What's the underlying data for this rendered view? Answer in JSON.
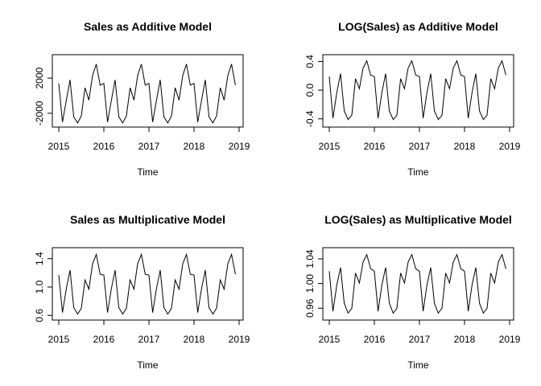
{
  "chart_data": [
    {
      "type": "line",
      "title": "Sales as Additive Model",
      "xlabel": "Time",
      "ylabel": "",
      "xlim": [
        2015,
        2019
      ],
      "ylim": [
        -3200,
        4300
      ],
      "xticks": [
        2015,
        2016,
        2017,
        2018,
        2019
      ],
      "xtick_labels": [
        "2015",
        "2016",
        "2017",
        "2018",
        "2019"
      ],
      "yticks": [
        -2000,
        2000
      ],
      "ytick_labels": [
        "-2000",
        "2000"
      ],
      "grid": false,
      "series": [
        {
          "x": [
            2015.0,
            2015.083,
            2015.167,
            2015.25,
            2015.333,
            2015.417,
            2015.5,
            2015.583,
            2015.667,
            2015.75,
            2015.833,
            2015.917,
            2016.0,
            2016.083,
            2016.167,
            2016.25,
            2016.333,
            2016.417,
            2016.5,
            2016.583,
            2016.667,
            2016.75,
            2016.833,
            2016.917,
            2017.0,
            2017.083,
            2017.167,
            2017.25,
            2017.333,
            2017.417,
            2017.5,
            2017.583,
            2017.667,
            2017.75,
            2017.833,
            2017.917,
            2018.0,
            2018.083,
            2018.167,
            2018.25,
            2018.333,
            2018.417,
            2018.5,
            2018.583,
            2018.667,
            2018.75,
            2018.833,
            2018.917
          ],
          "values": [
            1400,
            -3000,
            -500,
            1800,
            -2400,
            -3100,
            -2300,
            900,
            -500,
            2300,
            3600,
            1200,
            1400,
            -3000,
            -500,
            1800,
            -2400,
            -3100,
            -2300,
            900,
            -500,
            2300,
            3600,
            1200,
            1400,
            -3000,
            -500,
            1800,
            -2400,
            -3100,
            -2300,
            900,
            -500,
            2300,
            3600,
            1200,
            1400,
            -3000,
            -500,
            1800,
            -2400,
            -3100,
            -2300,
            900,
            -500,
            2300,
            3600,
            1200
          ]
        }
      ]
    },
    {
      "type": "line",
      "title": "LOG(Sales) as Additive Model",
      "xlabel": "Time",
      "ylabel": "",
      "xlim": [
        2015,
        2019
      ],
      "ylim": [
        -0.47,
        0.45
      ],
      "xticks": [
        2015,
        2016,
        2017,
        2018,
        2019
      ],
      "xtick_labels": [
        "2015",
        "2016",
        "2017",
        "2018",
        "2019"
      ],
      "yticks": [
        -0.4,
        0.0,
        0.4
      ],
      "ytick_labels": [
        "-0.4",
        "0.0",
        "0.4"
      ],
      "grid": false,
      "series": [
        {
          "x": [
            2015.0,
            2015.083,
            2015.167,
            2015.25,
            2015.333,
            2015.417,
            2015.5,
            2015.583,
            2015.667,
            2015.75,
            2015.833,
            2015.917,
            2016.0,
            2016.083,
            2016.167,
            2016.25,
            2016.333,
            2016.417,
            2016.5,
            2016.583,
            2016.667,
            2016.75,
            2016.833,
            2016.917,
            2017.0,
            2017.083,
            2017.167,
            2017.25,
            2017.333,
            2017.417,
            2017.5,
            2017.583,
            2017.667,
            2017.75,
            2017.833,
            2017.917,
            2018.0,
            2018.083,
            2018.167,
            2018.25,
            2018.333,
            2018.417,
            2018.5,
            2018.583,
            2018.667,
            2018.75,
            2018.833,
            2018.917
          ],
          "values": [
            0.19,
            -0.39,
            -0.03,
            0.23,
            -0.29,
            -0.41,
            -0.35,
            0.16,
            0.02,
            0.31,
            0.41,
            0.21,
            0.19,
            -0.39,
            -0.03,
            0.23,
            -0.29,
            -0.41,
            -0.35,
            0.16,
            0.02,
            0.31,
            0.41,
            0.21,
            0.19,
            -0.39,
            -0.03,
            0.23,
            -0.29,
            -0.41,
            -0.35,
            0.16,
            0.02,
            0.31,
            0.41,
            0.21,
            0.19,
            -0.39,
            -0.03,
            0.23,
            -0.29,
            -0.41,
            -0.35,
            0.16,
            0.02,
            0.31,
            0.41,
            0.21
          ]
        }
      ]
    },
    {
      "type": "line",
      "title": "Sales as Multiplicative Model",
      "xlabel": "Time",
      "ylabel": "",
      "xlim": [
        2015,
        2019
      ],
      "ylim": [
        0.58,
        1.51
      ],
      "xticks": [
        2015,
        2016,
        2017,
        2018,
        2019
      ],
      "xtick_labels": [
        "2015",
        "2016",
        "2017",
        "2018",
        "2019"
      ],
      "yticks": [
        0.6,
        1.0,
        1.4
      ],
      "ytick_labels": [
        "0.6",
        "1.0",
        "1.4"
      ],
      "grid": false,
      "series": [
        {
          "x": [
            2015.0,
            2015.083,
            2015.167,
            2015.25,
            2015.333,
            2015.417,
            2015.5,
            2015.583,
            2015.667,
            2015.75,
            2015.833,
            2015.917,
            2016.0,
            2016.083,
            2016.167,
            2016.25,
            2016.333,
            2016.417,
            2016.5,
            2016.583,
            2016.667,
            2016.75,
            2016.833,
            2016.917,
            2017.0,
            2017.083,
            2017.167,
            2017.25,
            2017.333,
            2017.417,
            2017.5,
            2017.583,
            2017.667,
            2017.75,
            2017.833,
            2017.917,
            2018.0,
            2018.083,
            2018.167,
            2018.25,
            2018.333,
            2018.417,
            2018.5,
            2018.583,
            2018.667,
            2018.75,
            2018.833,
            2018.917
          ],
          "values": [
            1.17,
            0.64,
            0.98,
            1.24,
            0.71,
            0.62,
            0.7,
            1.1,
            0.97,
            1.33,
            1.46,
            1.18,
            1.17,
            0.64,
            0.98,
            1.24,
            0.71,
            0.62,
            0.7,
            1.1,
            0.97,
            1.33,
            1.46,
            1.18,
            1.17,
            0.64,
            0.98,
            1.24,
            0.71,
            0.62,
            0.7,
            1.1,
            0.97,
            1.33,
            1.46,
            1.18,
            1.17,
            0.64,
            0.98,
            1.24,
            0.71,
            0.62,
            0.7,
            1.1,
            0.97,
            1.33,
            1.46,
            1.18
          ]
        }
      ]
    },
    {
      "type": "line",
      "title": "LOG(Sales) as Multiplicative Model",
      "xlabel": "Time",
      "ylabel": "",
      "xlim": [
        2015,
        2019
      ],
      "ylim": [
        0.946,
        1.053
      ],
      "xticks": [
        2015,
        2016,
        2017,
        2018,
        2019
      ],
      "xtick_labels": [
        "2015",
        "2016",
        "2017",
        "2018",
        "2019"
      ],
      "yticks": [
        0.96,
        1.0,
        1.04
      ],
      "ytick_labels": [
        "0.96",
        "1.00",
        "1.04"
      ],
      "grid": false,
      "series": [
        {
          "x": [
            2015.0,
            2015.083,
            2015.167,
            2015.25,
            2015.333,
            2015.417,
            2015.5,
            2015.583,
            2015.667,
            2015.75,
            2015.833,
            2015.917,
            2016.0,
            2016.083,
            2016.167,
            2016.25,
            2016.333,
            2016.417,
            2016.5,
            2016.583,
            2016.667,
            2016.75,
            2016.833,
            2016.917,
            2017.0,
            2017.083,
            2017.167,
            2017.25,
            2017.333,
            2017.417,
            2017.5,
            2017.583,
            2017.667,
            2017.75,
            2017.833,
            2017.917,
            2018.0,
            2018.083,
            2018.167,
            2018.25,
            2018.333,
            2018.417,
            2018.5,
            2018.583,
            2018.667,
            2018.75,
            2018.833,
            2018.917
          ],
          "values": [
            1.02,
            0.955,
            0.998,
            1.026,
            0.968,
            0.952,
            0.96,
            1.017,
            1.001,
            1.035,
            1.047,
            1.024,
            1.02,
            0.955,
            0.998,
            1.026,
            0.968,
            0.952,
            0.96,
            1.017,
            1.001,
            1.035,
            1.047,
            1.024,
            1.02,
            0.955,
            0.998,
            1.026,
            0.968,
            0.952,
            0.96,
            1.017,
            1.001,
            1.035,
            1.047,
            1.024,
            1.02,
            0.955,
            0.998,
            1.026,
            0.968,
            0.952,
            0.96,
            1.017,
            1.001,
            1.035,
            1.047,
            1.024
          ]
        }
      ]
    }
  ]
}
